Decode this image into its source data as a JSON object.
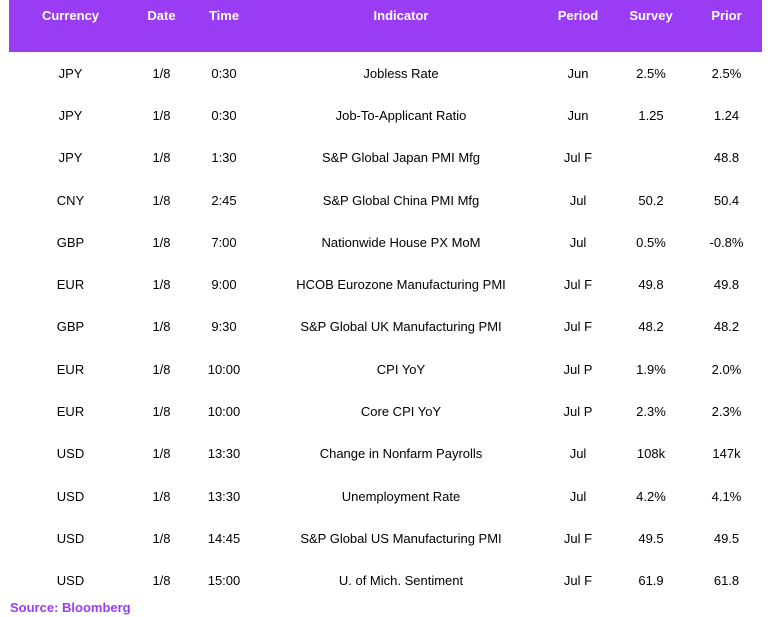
{
  "header": {
    "currency": "Currency",
    "date": "Date",
    "time": "Time",
    "indicator": "Indicator",
    "period": "Period",
    "survey": "Survey",
    "prior": "Prior"
  },
  "rows": [
    {
      "currency": "JPY",
      "date": "1/8",
      "time": "0:30",
      "indicator": "Jobless Rate",
      "period": "Jun",
      "survey": "2.5%",
      "prior": "2.5%"
    },
    {
      "currency": "JPY",
      "date": "1/8",
      "time": "0:30",
      "indicator": "Job-To-Applicant Ratio",
      "period": "Jun",
      "survey": "1.25",
      "prior": "1.24"
    },
    {
      "currency": "JPY",
      "date": "1/8",
      "time": "1:30",
      "indicator": "S&P Global Japan PMI Mfg",
      "period": "Jul F",
      "survey": "",
      "prior": "48.8"
    },
    {
      "currency": "CNY",
      "date": "1/8",
      "time": "2:45",
      "indicator": "S&P Global China PMI Mfg",
      "period": "Jul",
      "survey": "50.2",
      "prior": "50.4"
    },
    {
      "currency": "GBP",
      "date": "1/8",
      "time": "7:00",
      "indicator": "Nationwide House PX MoM",
      "period": "Jul",
      "survey": "0.5%",
      "prior": "-0.8%"
    },
    {
      "currency": "EUR",
      "date": "1/8",
      "time": "9:00",
      "indicator": "HCOB Eurozone Manufacturing PMI",
      "period": "Jul F",
      "survey": "49.8",
      "prior": "49.8"
    },
    {
      "currency": "GBP",
      "date": "1/8",
      "time": "9:30",
      "indicator": "S&P Global UK Manufacturing PMI",
      "period": "Jul F",
      "survey": "48.2",
      "prior": "48.2"
    },
    {
      "currency": "EUR",
      "date": "1/8",
      "time": "10:00",
      "indicator": "CPI YoY",
      "period": "Jul P",
      "survey": "1.9%",
      "prior": "2.0%"
    },
    {
      "currency": "EUR",
      "date": "1/8",
      "time": "10:00",
      "indicator": "Core CPI YoY",
      "period": "Jul P",
      "survey": "2.3%",
      "prior": "2.3%"
    },
    {
      "currency": "USD",
      "date": "1/8",
      "time": "13:30",
      "indicator": "Change in Nonfarm Payrolls",
      "period": "Jul",
      "survey": "108k",
      "prior": "147k"
    },
    {
      "currency": "USD",
      "date": "1/8",
      "time": "13:30",
      "indicator": "Unemployment Rate",
      "period": "Jul",
      "survey": "4.2%",
      "prior": "4.1%"
    },
    {
      "currency": "USD",
      "date": "1/8",
      "time": "14:45",
      "indicator": "S&P Global US Manufacturing PMI",
      "period": "Jul F",
      "survey": "49.5",
      "prior": "49.5"
    },
    {
      "currency": "USD",
      "date": "1/8",
      "time": "15:00",
      "indicator": "U. of Mich. Sentiment",
      "period": "Jul F",
      "survey": "61.9",
      "prior": "61.8"
    }
  ],
  "source": "Source: Bloomberg",
  "colors": {
    "header_bg": "#9b3cf5",
    "header_text": "#ffffff",
    "source_text": "#9b3cf5"
  }
}
